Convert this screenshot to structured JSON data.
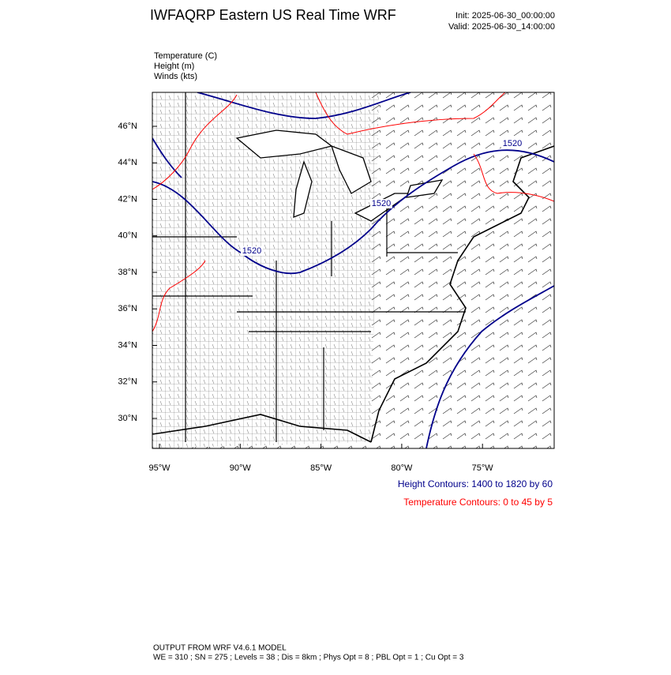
{
  "header": {
    "title": "IWFAQRP Eastern US Real Time WRF",
    "init": "Init: 2025-06-30_00:00:00",
    "valid": "Valid: 2025-06-30_14:00:00"
  },
  "fields": [
    "Temperature   (C)",
    "Height   (m)",
    "Winds   (kts)"
  ],
  "map": {
    "lat_labels": [
      "46°N",
      "44°N",
      "42°N",
      "40°N",
      "38°N",
      "36°N",
      "34°N",
      "32°N",
      "30°N"
    ],
    "lon_labels": [
      "95°W",
      "90°W",
      "85°W",
      "80°W",
      "75°W"
    ],
    "contour_labels": [
      "1520",
      "1520",
      "1520"
    ]
  },
  "legend": {
    "height": "Height Contours: 1400 to 1820 by 60",
    "temperature": "Temperature Contours: 0 to 45 by 5"
  },
  "footer": {
    "line1": "OUTPUT FROM WRF V4.6.1 MODEL",
    "line2": "WE = 310 ; SN = 275 ; Levels = 38 ; Dis = 8km ; Phys Opt = 8 ; PBL Opt = 1 ; Cu Opt = 3"
  }
}
